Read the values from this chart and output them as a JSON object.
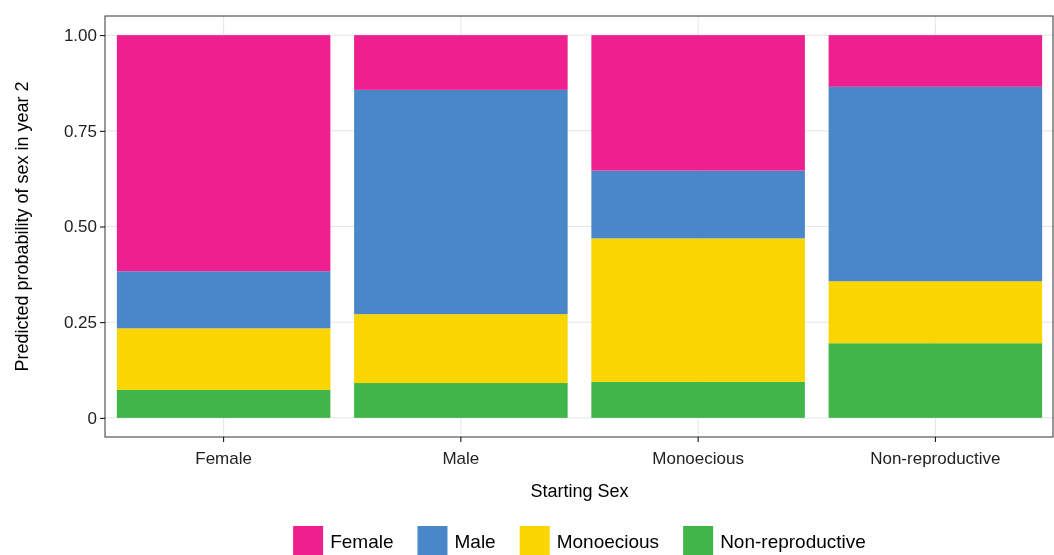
{
  "chart_data": {
    "type": "bar",
    "stacked": true,
    "xlabel": "Starting Sex",
    "ylabel": "Predicted probability of sex in year 2",
    "categories": [
      "Female",
      "Male",
      "Monoecious",
      "Non-reproductive"
    ],
    "series": [
      {
        "name": "Non-reproductive",
        "color": "#3fb54a",
        "values": [
          0.073,
          0.091,
          0.094,
          0.195
        ]
      },
      {
        "name": "Monoecious",
        "color": "#fbd500",
        "values": [
          0.161,
          0.18,
          0.375,
          0.162
        ]
      },
      {
        "name": "Male",
        "color": "#4a87c8",
        "values": [
          0.149,
          0.586,
          0.177,
          0.508
        ]
      },
      {
        "name": "Female",
        "color": "#ee1f8f",
        "values": [
          0.617,
          0.143,
          0.354,
          0.135
        ]
      }
    ],
    "ylim": [
      -0.05,
      1.05
    ],
    "yticks": [
      {
        "value": 0,
        "label": "0"
      },
      {
        "value": 0.25,
        "label": "0.25"
      },
      {
        "value": 0.5,
        "label": "0.50"
      },
      {
        "value": 0.75,
        "label": "0.75"
      },
      {
        "value": 1,
        "label": "1.00"
      }
    ],
    "grid": true,
    "legend": "bottom"
  }
}
